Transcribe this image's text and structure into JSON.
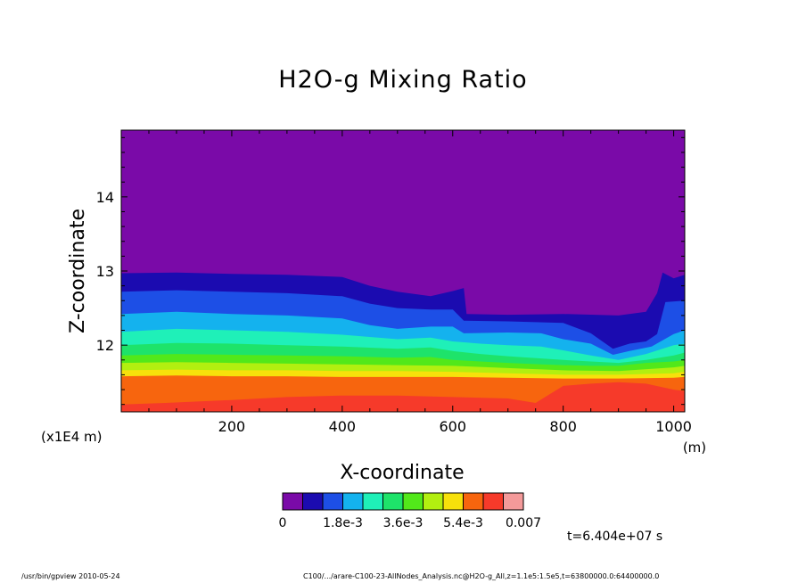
{
  "chart_data": {
    "type": "heatmap",
    "title": "H2O-g Mixing Ratio",
    "xlabel": "X-coordinate",
    "ylabel": "Z-coordinate",
    "x_unit": "(m)",
    "y_unit": "(x1E4 m)",
    "xlim": [
      0,
      1020
    ],
    "ylim": [
      11.1,
      14.9
    ],
    "x_ticks": [
      "200",
      "400",
      "600",
      "800",
      "1000"
    ],
    "y_ticks": [
      "12",
      "13",
      "14"
    ],
    "colorbar": {
      "colors": [
        "#7a0aa8",
        "#1b0bb0",
        "#1d4fe6",
        "#14b2ee",
        "#1ff0b8",
        "#1ee36a",
        "#52e81a",
        "#b2ef10",
        "#f7e10b",
        "#f7650e",
        "#f63a2a",
        "#f49a9a"
      ],
      "labels": [
        "0",
        "1.8e-3",
        "3.6e-3",
        "5.4e-3",
        "0.007"
      ]
    },
    "time_label": "t=6.404e+07 s",
    "layers": [
      {
        "color": "#1b0bb0",
        "top": [
          [
            0,
            12.97
          ],
          [
            100,
            12.98
          ],
          [
            200,
            12.96
          ],
          [
            300,
            12.95
          ],
          [
            400,
            12.92
          ],
          [
            450,
            12.8
          ],
          [
            500,
            12.72
          ],
          [
            560,
            12.66
          ],
          [
            600,
            12.73
          ],
          [
            620,
            12.77
          ],
          [
            625,
            12.42
          ],
          [
            700,
            12.41
          ],
          [
            800,
            12.42
          ],
          [
            900,
            12.4
          ],
          [
            950,
            12.45
          ],
          [
            970,
            12.7
          ],
          [
            980,
            12.98
          ],
          [
            1000,
            12.9
          ],
          [
            1020,
            12.95
          ]
        ]
      },
      {
        "color": "#1d4fe6",
        "top": [
          [
            0,
            12.72
          ],
          [
            100,
            12.74
          ],
          [
            200,
            12.72
          ],
          [
            300,
            12.7
          ],
          [
            400,
            12.66
          ],
          [
            450,
            12.56
          ],
          [
            500,
            12.5
          ],
          [
            560,
            12.48
          ],
          [
            600,
            12.48
          ],
          [
            620,
            12.33
          ],
          [
            700,
            12.32
          ],
          [
            800,
            12.3
          ],
          [
            850,
            12.16
          ],
          [
            890,
            11.95
          ],
          [
            920,
            12.02
          ],
          [
            950,
            12.05
          ],
          [
            970,
            12.15
          ],
          [
            985,
            12.58
          ],
          [
            1020,
            12.6
          ]
        ]
      },
      {
        "color": "#14b2ee",
        "top": [
          [
            0,
            12.42
          ],
          [
            100,
            12.45
          ],
          [
            200,
            12.42
          ],
          [
            300,
            12.4
          ],
          [
            400,
            12.36
          ],
          [
            450,
            12.27
          ],
          [
            500,
            12.22
          ],
          [
            560,
            12.25
          ],
          [
            600,
            12.25
          ],
          [
            620,
            12.16
          ],
          [
            700,
            12.17
          ],
          [
            760,
            12.16
          ],
          [
            800,
            12.08
          ],
          [
            850,
            12.02
          ],
          [
            890,
            11.87
          ],
          [
            920,
            11.92
          ],
          [
            960,
            11.98
          ],
          [
            1000,
            12.15
          ],
          [
            1020,
            12.2
          ]
        ]
      },
      {
        "color": "#1ff0b8",
        "top": [
          [
            0,
            12.18
          ],
          [
            100,
            12.22
          ],
          [
            200,
            12.2
          ],
          [
            300,
            12.18
          ],
          [
            400,
            12.14
          ],
          [
            500,
            12.08
          ],
          [
            560,
            12.1
          ],
          [
            600,
            12.05
          ],
          [
            650,
            12.02
          ],
          [
            700,
            12.0
          ],
          [
            760,
            11.98
          ],
          [
            800,
            11.93
          ],
          [
            850,
            11.86
          ],
          [
            900,
            11.8
          ],
          [
            950,
            11.88
          ],
          [
            1000,
            12.0
          ],
          [
            1020,
            12.02
          ]
        ]
      },
      {
        "color": "#1ee36a",
        "top": [
          [
            0,
            12.0
          ],
          [
            100,
            12.03
          ],
          [
            200,
            12.02
          ],
          [
            300,
            12.0
          ],
          [
            400,
            11.98
          ],
          [
            500,
            11.95
          ],
          [
            560,
            11.97
          ],
          [
            600,
            11.92
          ],
          [
            650,
            11.88
          ],
          [
            700,
            11.85
          ],
          [
            760,
            11.82
          ],
          [
            800,
            11.8
          ],
          [
            850,
            11.78
          ],
          [
            900,
            11.76
          ],
          [
            950,
            11.8
          ],
          [
            1000,
            11.86
          ],
          [
            1020,
            11.9
          ]
        ]
      },
      {
        "color": "#52e81a",
        "top": [
          [
            0,
            11.86
          ],
          [
            100,
            11.88
          ],
          [
            200,
            11.87
          ],
          [
            300,
            11.86
          ],
          [
            400,
            11.85
          ],
          [
            500,
            11.83
          ],
          [
            560,
            11.84
          ],
          [
            600,
            11.8
          ],
          [
            650,
            11.78
          ],
          [
            700,
            11.76
          ],
          [
            760,
            11.74
          ],
          [
            800,
            11.73
          ],
          [
            850,
            11.72
          ],
          [
            900,
            11.72
          ],
          [
            950,
            11.76
          ],
          [
            1000,
            11.78
          ],
          [
            1020,
            11.8
          ]
        ]
      },
      {
        "color": "#b2ef10",
        "top": [
          [
            0,
            11.76
          ],
          [
            100,
            11.77
          ],
          [
            200,
            11.76
          ],
          [
            300,
            11.75
          ],
          [
            400,
            11.74
          ],
          [
            500,
            11.73
          ],
          [
            600,
            11.72
          ],
          [
            700,
            11.69
          ],
          [
            800,
            11.66
          ],
          [
            900,
            11.65
          ],
          [
            1000,
            11.7
          ],
          [
            1020,
            11.72
          ]
        ]
      },
      {
        "color": "#f7e10b",
        "top": [
          [
            0,
            11.66
          ],
          [
            100,
            11.67
          ],
          [
            200,
            11.66
          ],
          [
            300,
            11.66
          ],
          [
            400,
            11.65
          ],
          [
            500,
            11.65
          ],
          [
            600,
            11.64
          ],
          [
            700,
            11.62
          ],
          [
            800,
            11.6
          ],
          [
            900,
            11.6
          ],
          [
            1000,
            11.62
          ],
          [
            1020,
            11.64
          ]
        ]
      },
      {
        "color": "#f7650e",
        "top": [
          [
            0,
            11.58
          ],
          [
            100,
            11.59
          ],
          [
            200,
            11.58
          ],
          [
            300,
            11.58
          ],
          [
            400,
            11.57
          ],
          [
            500,
            11.57
          ],
          [
            600,
            11.57
          ],
          [
            700,
            11.56
          ],
          [
            800,
            11.55
          ],
          [
            900,
            11.55
          ],
          [
            1000,
            11.56
          ],
          [
            1020,
            11.57
          ]
        ]
      },
      {
        "color": "#f63a2a",
        "top": [
          [
            0,
            11.2
          ],
          [
            80,
            11.22
          ],
          [
            200,
            11.26
          ],
          [
            300,
            11.3
          ],
          [
            400,
            11.32
          ],
          [
            500,
            11.32
          ],
          [
            600,
            11.3
          ],
          [
            700,
            11.28
          ],
          [
            750,
            11.22
          ],
          [
            800,
            11.45
          ],
          [
            850,
            11.48
          ],
          [
            900,
            11.5
          ],
          [
            950,
            11.48
          ],
          [
            1000,
            11.4
          ],
          [
            1020,
            11.38
          ]
        ]
      }
    ]
  },
  "footer": {
    "left": "/usr/bin/gpview   2010-05-24",
    "right": "C100/.../arare-C100-23-AllNodes_Analysis.nc@H2O-g_All,z=1.1e5:1.5e5,t=63800000.0:64400000.0"
  }
}
